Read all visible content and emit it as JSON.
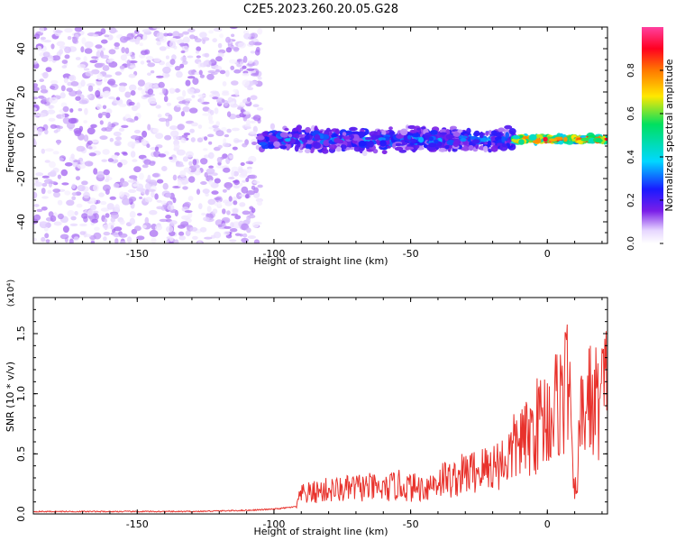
{
  "title": "C2E5.2023.260.20.05.G28",
  "chart_data": [
    {
      "type": "heatmap",
      "xlabel": "Height of straight line (km)",
      "ylabel": "Frequency (Hz)",
      "xlim": [
        -188,
        22
      ],
      "ylim": [
        -50,
        50
      ],
      "x_ticks": [
        -150,
        -100,
        -50,
        0
      ],
      "y_ticks": [
        -40,
        -20,
        0,
        20,
        40
      ],
      "colorbar": {
        "label": "Normalized spectral amplitude",
        "range": [
          0.0,
          1.0
        ],
        "ticks": [
          0.0,
          0.2,
          0.4,
          0.6,
          0.8
        ],
        "tick_labels": [
          "0.0",
          "0.2",
          "0.4",
          "0.6",
          "0.8"
        ],
        "colors": [
          "#ffffff",
          "#e6d6ff",
          "#7a1ee8",
          "#1a1aff",
          "#00d8ff",
          "#00e060",
          "#ffe800",
          "#ff7800",
          "#ff0020",
          "#ff40a0"
        ]
      },
      "regions": [
        {
          "desc": "noise",
          "x_range": [
            -188,
            -105
          ],
          "freq_spread": 50,
          "max_amplitude": 0.1
        },
        {
          "desc": "signal",
          "x_range": [
            -105,
            -12
          ],
          "freq_center": -2,
          "freq_spread": 7,
          "max_amplitude": 0.35
        },
        {
          "desc": "strong signal",
          "x_range": [
            -12,
            22
          ],
          "freq_center": -2,
          "freq_spread": 2,
          "max_amplitude": 0.95
        }
      ]
    },
    {
      "type": "line",
      "xlabel": "Height of straight line (km)",
      "ylabel": "SNR (10 * v/v)",
      "y_multiplier": "(x10⁴)",
      "xlim": [
        -188,
        22
      ],
      "ylim": [
        0,
        1.8
      ],
      "x_ticks": [
        -150,
        -100,
        -50,
        0
      ],
      "y_ticks": [
        0.0,
        0.5,
        1.0,
        1.5
      ],
      "y_tick_labels": [
        "0.0",
        "0.5",
        "1.0",
        "1.5"
      ],
      "series": [
        {
          "color": "#e8322c",
          "x": [
            -188,
            -160,
            -130,
            -110,
            -100,
            -92,
            -90,
            -85,
            -80,
            -75,
            -70,
            -65,
            -60,
            -55,
            -50,
            -45,
            -42,
            -38,
            -35,
            -30,
            -25,
            -20,
            -15,
            -12,
            -10,
            -8,
            -5,
            -2,
            0,
            2,
            4,
            6,
            8,
            9,
            10,
            11,
            12,
            15,
            18,
            20,
            22
          ],
          "y": [
            0.02,
            0.02,
            0.02,
            0.03,
            0.04,
            0.06,
            0.16,
            0.18,
            0.2,
            0.2,
            0.22,
            0.22,
            0.2,
            0.24,
            0.22,
            0.22,
            0.25,
            0.3,
            0.28,
            0.34,
            0.36,
            0.4,
            0.45,
            0.55,
            0.62,
            0.6,
            0.7,
            0.8,
            0.8,
            0.85,
            0.95,
            1.0,
            1.2,
            0.4,
            0.15,
            0.35,
            0.75,
            0.95,
            0.92,
            1.0,
            1.05
          ]
        }
      ]
    }
  ]
}
